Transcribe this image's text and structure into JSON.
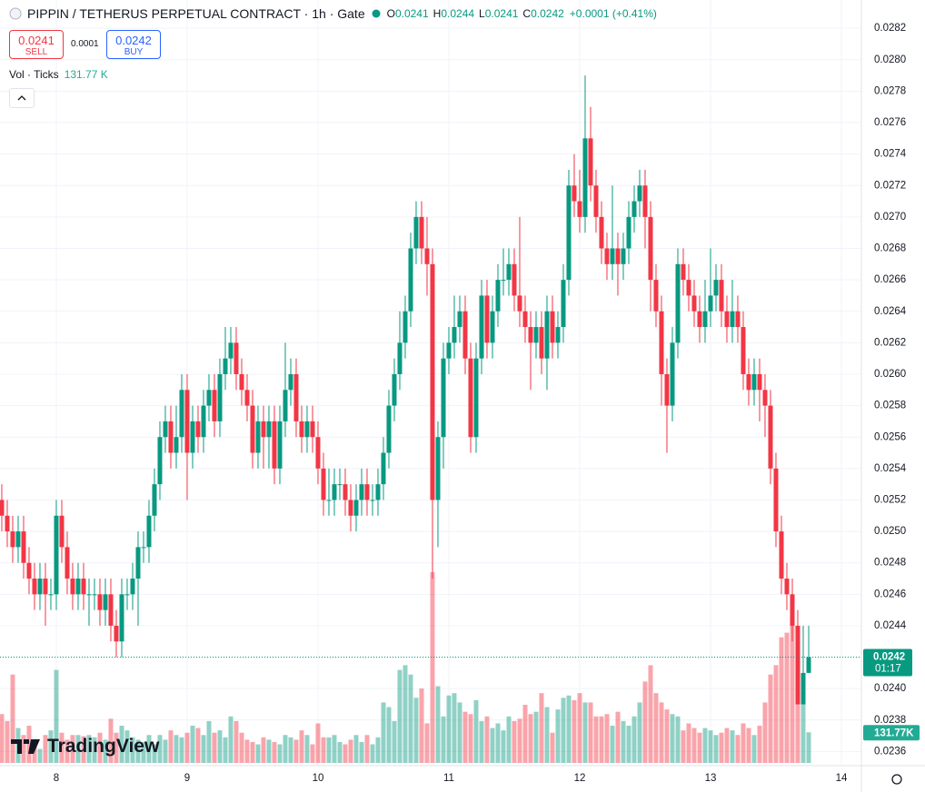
{
  "chart_data": {
    "type": "candlestick",
    "title": "PIPPIN / TETHERUS PERPETUAL CONTRACT · 1h · Gate",
    "ohlc_legend": [
      {
        "key": "O",
        "value": 0.0241
      },
      {
        "key": "H",
        "value": 0.0244
      },
      {
        "key": "L",
        "value": 0.0241
      },
      {
        "key": "C",
        "value": 0.0242
      }
    ],
    "change": "+0.0001 (+0.41%)",
    "sell": {
      "price": 0.0241,
      "label": "SELL"
    },
    "spread": 0.0001,
    "buy": {
      "price": 0.0242,
      "label": "BUY"
    },
    "volume_title": "Vol · Ticks",
    "volume_value": "131.77 K",
    "last_price": 0.0242,
    "countdown": "01:17",
    "last_volume_label": "131.77K",
    "brand": "TradingView",
    "up_color": "#089981",
    "down_color": "#f23645",
    "open": [
      0.0252,
      0.0251,
      0.025,
      0.0249,
      0.025,
      0.0248,
      0.0247,
      0.0246,
      0.0247,
      0.0246,
      0.0246,
      0.0251,
      0.0249,
      0.0247,
      0.0246,
      0.0247,
      0.0246,
      0.0246,
      0.0246,
      0.0245,
      0.0246,
      0.0244,
      0.0243,
      0.0246,
      0.0246,
      0.0247,
      0.0249,
      0.0249,
      0.0251,
      0.0253,
      0.0256,
      0.0257,
      0.0255,
      0.0256,
      0.0259,
      0.0255,
      0.0257,
      0.0256,
      0.0258,
      0.0259,
      0.0257,
      0.026,
      0.0261,
      0.0262,
      0.026,
      0.0259,
      0.0258,
      0.0255,
      0.0257,
      0.0256,
      0.0257,
      0.0254,
      0.0257,
      0.0259,
      0.026,
      0.0257,
      0.0256,
      0.0257,
      0.0256,
      0.0254,
      0.0252,
      0.0252,
      0.0253,
      0.0253,
      0.0252,
      0.0251,
      0.0252,
      0.0253,
      0.0252,
      0.0252,
      0.0253,
      0.0255,
      0.0258,
      0.026,
      0.0262,
      0.0264,
      0.0268,
      0.027,
      0.0268,
      0.0267,
      0.0252,
      0.0256,
      0.0261,
      0.0262,
      0.0263,
      0.0264,
      0.0261,
      0.0256,
      0.0261,
      0.0265,
      0.0262,
      0.0264,
      0.0266,
      0.0266,
      0.0267,
      0.0265,
      0.0264,
      0.0263,
      0.0262,
      0.0263,
      0.0261,
      0.0264,
      0.0262,
      0.0263,
      0.0266,
      0.0272,
      0.0271,
      0.027,
      0.0275,
      0.0272,
      0.027,
      0.0268,
      0.0267,
      0.0268,
      0.0267,
      0.0268,
      0.027,
      0.0271,
      0.0272,
      0.027,
      0.0266,
      0.0264,
      0.026,
      0.0258,
      0.0262,
      0.0267,
      0.0266,
      0.0265,
      0.0264,
      0.0263,
      0.0264,
      0.0265,
      0.0266,
      0.0264,
      0.0263,
      0.0264,
      0.0263,
      0.026,
      0.0259,
      0.026,
      0.0259,
      0.0258,
      0.0254,
      0.025,
      0.0247,
      0.0246,
      0.0244,
      0.0239,
      0.0241
    ],
    "high": [
      0.0253,
      0.0252,
      0.0251,
      0.0251,
      0.0251,
      0.0249,
      0.0248,
      0.0248,
      0.0248,
      0.0247,
      0.0252,
      0.0252,
      0.025,
      0.0248,
      0.0248,
      0.0248,
      0.0247,
      0.0247,
      0.0247,
      0.0247,
      0.0247,
      0.0245,
      0.0247,
      0.0247,
      0.0248,
      0.025,
      0.025,
      0.0252,
      0.0254,
      0.0257,
      0.0258,
      0.0258,
      0.0258,
      0.026,
      0.026,
      0.0258,
      0.0258,
      0.0259,
      0.026,
      0.026,
      0.0261,
      0.0263,
      0.0263,
      0.0263,
      0.0261,
      0.026,
      0.0259,
      0.0258,
      0.0258,
      0.0258,
      0.0258,
      0.0258,
      0.0262,
      0.0261,
      0.0261,
      0.0258,
      0.0258,
      0.0258,
      0.0257,
      0.0255,
      0.0254,
      0.0254,
      0.0254,
      0.0254,
      0.0253,
      0.0253,
      0.0254,
      0.0254,
      0.0253,
      0.0254,
      0.0256,
      0.0259,
      0.0261,
      0.0264,
      0.0265,
      0.0269,
      0.0271,
      0.0271,
      0.027,
      0.0268,
      0.0257,
      0.0262,
      0.0263,
      0.0265,
      0.0265,
      0.0265,
      0.0262,
      0.0262,
      0.0266,
      0.0266,
      0.0265,
      0.0267,
      0.0268,
      0.0268,
      0.0268,
      0.027,
      0.0265,
      0.0264,
      0.0264,
      0.0264,
      0.0265,
      0.0265,
      0.0264,
      0.0267,
      0.0273,
      0.0274,
      0.0273,
      0.0279,
      0.0277,
      0.0273,
      0.0271,
      0.0269,
      0.0272,
      0.0269,
      0.0269,
      0.0271,
      0.0272,
      0.0273,
      0.0273,
      0.0271,
      0.0267,
      0.0265,
      0.0261,
      0.0263,
      0.0268,
      0.0268,
      0.0267,
      0.0266,
      0.0265,
      0.0266,
      0.0268,
      0.0267,
      0.0267,
      0.0265,
      0.0266,
      0.0265,
      0.0264,
      0.0261,
      0.0261,
      0.0261,
      0.026,
      0.0259,
      0.0255,
      0.0251,
      0.0248,
      0.0247,
      0.0245,
      0.0244,
      0.0244
    ],
    "low": [
      0.025,
      0.0249,
      0.0248,
      0.0248,
      0.0247,
      0.0246,
      0.0245,
      0.0245,
      0.0244,
      0.0245,
      0.0245,
      0.0248,
      0.0246,
      0.0245,
      0.0245,
      0.0245,
      0.0244,
      0.0245,
      0.0244,
      0.0244,
      0.0243,
      0.0242,
      0.0242,
      0.0245,
      0.0245,
      0.0244,
      0.0248,
      0.0248,
      0.025,
      0.0252,
      0.0255,
      0.0254,
      0.0254,
      0.0255,
      0.0252,
      0.0254,
      0.0255,
      0.0255,
      0.0257,
      0.0256,
      0.0256,
      0.0259,
      0.026,
      0.0259,
      0.0258,
      0.0257,
      0.0254,
      0.0254,
      0.0254,
      0.0254,
      0.0253,
      0.0253,
      0.0256,
      0.0258,
      0.0256,
      0.0255,
      0.0255,
      0.0255,
      0.0253,
      0.0251,
      0.0251,
      0.0251,
      0.0252,
      0.0251,
      0.025,
      0.025,
      0.0251,
      0.0251,
      0.0251,
      0.0251,
      0.0252,
      0.0254,
      0.0257,
      0.0259,
      0.0261,
      0.0263,
      0.0267,
      0.0267,
      0.0265,
      0.0247,
      0.0249,
      0.0254,
      0.026,
      0.0261,
      0.0262,
      0.026,
      0.0255,
      0.0255,
      0.026,
      0.0261,
      0.0261,
      0.0263,
      0.0265,
      0.0265,
      0.0264,
      0.0263,
      0.0262,
      0.0259,
      0.0261,
      0.026,
      0.0259,
      0.0261,
      0.0261,
      0.0262,
      0.0265,
      0.027,
      0.0269,
      0.0269,
      0.0271,
      0.0269,
      0.0267,
      0.0266,
      0.0266,
      0.0265,
      0.0266,
      0.0267,
      0.0269,
      0.027,
      0.0268,
      0.0264,
      0.0263,
      0.0258,
      0.0255,
      0.0257,
      0.0261,
      0.0265,
      0.0264,
      0.0263,
      0.0262,
      0.0262,
      0.0263,
      0.0264,
      0.0263,
      0.0262,
      0.0262,
      0.0262,
      0.0259,
      0.0258,
      0.0258,
      0.0257,
      0.0256,
      0.0253,
      0.0249,
      0.0246,
      0.0245,
      0.0243,
      0.0239,
      0.0239,
      0.0241
    ],
    "close": [
      0.0251,
      0.025,
      0.0249,
      0.025,
      0.0248,
      0.0247,
      0.0246,
      0.0247,
      0.0246,
      0.0246,
      0.0251,
      0.0249,
      0.0247,
      0.0246,
      0.0247,
      0.0246,
      0.0246,
      0.0246,
      0.0245,
      0.0246,
      0.0244,
      0.0243,
      0.0246,
      0.0246,
      0.0247,
      0.0249,
      0.0249,
      0.0251,
      0.0253,
      0.0256,
      0.0257,
      0.0255,
      0.0256,
      0.0259,
      0.0255,
      0.0257,
      0.0256,
      0.0258,
      0.0259,
      0.0257,
      0.026,
      0.0261,
      0.0262,
      0.026,
      0.0259,
      0.0258,
      0.0255,
      0.0257,
      0.0256,
      0.0257,
      0.0254,
      0.0257,
      0.0259,
      0.026,
      0.0257,
      0.0256,
      0.0257,
      0.0256,
      0.0254,
      0.0252,
      0.0252,
      0.0253,
      0.0253,
      0.0252,
      0.0251,
      0.0252,
      0.0253,
      0.0252,
      0.0252,
      0.0253,
      0.0255,
      0.0258,
      0.026,
      0.0262,
      0.0264,
      0.0268,
      0.027,
      0.0268,
      0.0267,
      0.0252,
      0.0256,
      0.0261,
      0.0262,
      0.0263,
      0.0264,
      0.0261,
      0.0256,
      0.0261,
      0.0265,
      0.0262,
      0.0264,
      0.0266,
      0.0266,
      0.0267,
      0.0265,
      0.0264,
      0.0263,
      0.0262,
      0.0263,
      0.0261,
      0.0264,
      0.0262,
      0.0263,
      0.0266,
      0.0272,
      0.0271,
      0.027,
      0.0275,
      0.0272,
      0.027,
      0.0268,
      0.0267,
      0.0268,
      0.0267,
      0.0268,
      0.027,
      0.0271,
      0.0272,
      0.027,
      0.0266,
      0.0264,
      0.026,
      0.0258,
      0.0262,
      0.0267,
      0.0266,
      0.0265,
      0.0264,
      0.0263,
      0.0264,
      0.0265,
      0.0266,
      0.0264,
      0.0263,
      0.0264,
      0.0263,
      0.026,
      0.0259,
      0.026,
      0.0259,
      0.0258,
      0.0254,
      0.025,
      0.0247,
      0.0246,
      0.0244,
      0.0239,
      0.0241,
      0.0242
    ],
    "volume": [
      210,
      180,
      380,
      150,
      120,
      160,
      90,
      60,
      120,
      140,
      400,
      130,
      100,
      120,
      120,
      115,
      120,
      110,
      130,
      100,
      190,
      130,
      160,
      140,
      110,
      100,
      90,
      120,
      80,
      120,
      100,
      140,
      120,
      110,
      130,
      160,
      150,
      120,
      180,
      130,
      140,
      110,
      200,
      180,
      130,
      100,
      90,
      80,
      110,
      100,
      90,
      80,
      120,
      110,
      100,
      140,
      120,
      80,
      170,
      110,
      110,
      120,
      90,
      80,
      100,
      120,
      90,
      120,
      80,
      110,
      260,
      240,
      180,
      400,
      420,
      380,
      280,
      320,
      170,
      820,
      330,
      200,
      290,
      300,
      260,
      220,
      210,
      270,
      180,
      200,
      150,
      170,
      140,
      200,
      180,
      190,
      250,
      210,
      220,
      300,
      240,
      130,
      230,
      280,
      290,
      270,
      300,
      260,
      260,
      200,
      200,
      210,
      160,
      220,
      180,
      160,
      200,
      260,
      350,
      420,
      300,
      260,
      230,
      210,
      200,
      140,
      170,
      150,
      130,
      150,
      140,
      120,
      130,
      150,
      140,
      120,
      170,
      150,
      120,
      160,
      260,
      380,
      420,
      540,
      560,
      620,
      380,
      350,
      131.77
    ],
    "ylim": [
      0.02351,
      0.02838
    ],
    "yticks": [
      0.0236,
      0.0238,
      {
        "value": 0.024,
        "label": "0.0240"
      },
      0.0242,
      0.0244,
      0.0246,
      0.0248,
      {
        "value": 0.025,
        "label": "0.0250"
      },
      0.0252,
      0.0254,
      0.0256,
      0.0258,
      {
        "value": 0.026,
        "label": "0.0260"
      },
      0.0262,
      0.0264,
      0.0266,
      0.0268,
      {
        "value": 0.027,
        "label": "0.0270"
      },
      0.0272,
      0.0274,
      0.0276,
      0.0278,
      {
        "value": 0.028,
        "label": "0.0280"
      },
      0.0282
    ],
    "xlim": [
      -0.33,
      157.67
    ],
    "xticks": [
      {
        "value": 10,
        "label": "8"
      },
      {
        "value": 34,
        "label": "9"
      },
      {
        "value": 58,
        "label": "10"
      },
      {
        "value": 82,
        "label": "11"
      },
      {
        "value": 106,
        "label": "12"
      },
      {
        "value": 130,
        "label": "13"
      },
      {
        "value": 154,
        "label": "14"
      }
    ],
    "grid": true
  }
}
